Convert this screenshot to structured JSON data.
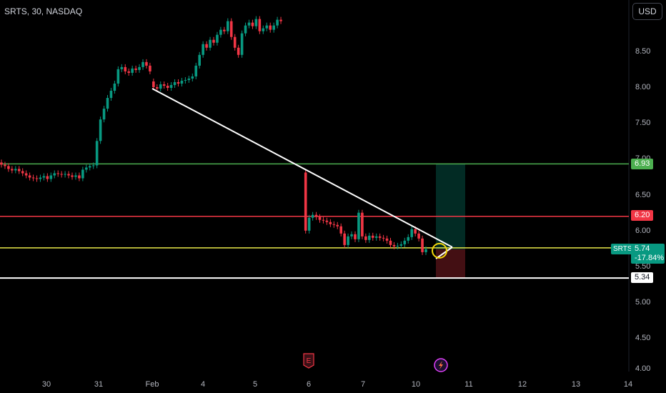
{
  "header": {
    "symbol_title": "SRTS, 30, NASDAQ",
    "currency_label": "USD"
  },
  "y_ticks": [
    "8.50",
    "8.00",
    "7.50",
    "7.00",
    "6.50",
    "6.00",
    "5.50",
    "5.00",
    "4.50",
    "4.00"
  ],
  "x_ticks": [
    "30",
    "31",
    "Feb",
    "4",
    "5",
    "6",
    "7",
    "10",
    "11",
    "12",
    "13",
    "14"
  ],
  "colors": {
    "up": "#089981",
    "down": "#f23645",
    "green_level": "#4caf50",
    "red_level": "#f23645",
    "yellow_level": "#e8e84a",
    "white_level": "#ffffff",
    "trendline": "#ffffff"
  },
  "price_labels": {
    "green_level": "6.93",
    "red_level": "6.20",
    "white_level": "5.34",
    "ticker": "SRTS",
    "last_price": "5.74",
    "last_change": "-17.84%"
  },
  "events": {
    "earnings_icon": "earnings-flag-icon",
    "dividend_icon": "lightning-icon",
    "earnings_letter": "E"
  },
  "chart_data": {
    "type": "candlestick",
    "title": "SRTS, 30, NASDAQ",
    "currency": "USD",
    "ylim": [
      4.0,
      8.95
    ],
    "x_tick_labels": [
      "30",
      "31",
      "Feb",
      "4",
      "5",
      "6",
      "7",
      "10",
      "11",
      "12",
      "13",
      "14"
    ],
    "grid": false,
    "segments": [
      {
        "start_slot": 0,
        "closes": [
          6.92,
          6.9,
          6.86,
          6.84,
          6.86,
          6.83,
          6.8,
          6.77,
          6.74,
          6.73,
          6.72,
          6.74,
          6.76,
          6.72,
          6.77,
          6.8,
          6.79,
          6.78,
          6.79,
          6.77,
          6.75,
          6.77,
          6.73,
          6.85,
          6.88,
          6.9,
          6.91
        ],
        "open": 6.95
      },
      {
        "start_slot": 27,
        "closes": [
          7.25,
          7.55,
          7.7,
          7.85,
          7.95,
          8.05,
          8.25,
          8.28,
          8.22,
          8.2,
          8.26,
          8.24,
          8.28,
          8.35,
          8.3,
          8.22
        ],
        "open": 6.91
      },
      {
        "start_slot": 43,
        "closes": [
          8.0,
          7.98,
          8.04,
          8.02,
          7.99,
          8.03,
          8.07,
          8.05,
          8.09,
          8.1,
          8.12,
          8.15,
          8.3,
          8.45,
          8.6,
          8.55,
          8.66,
          8.62,
          8.73,
          8.8,
          8.78,
          8.92,
          8.7,
          8.55,
          8.45,
          8.75,
          8.86,
          8.9,
          8.85,
          8.95,
          8.78,
          8.82,
          8.86,
          8.8,
          8.86,
          8.94,
          8.92
        ],
        "open": 8.08
      },
      {
        "start_slot": 86,
        "closes": [
          6.0,
          6.18,
          6.22,
          6.19,
          6.15,
          6.14,
          6.12,
          6.09,
          6.08,
          6.06,
          5.96,
          5.8,
          5.92,
          5.95,
          5.88,
          6.25,
          5.92,
          5.87,
          5.93,
          5.9,
          5.92,
          5.9,
          5.89,
          5.86,
          5.8,
          5.78,
          5.79,
          5.81,
          5.86,
          5.91,
          6.02,
          5.96,
          5.89,
          5.7,
          5.74
        ],
        "open": 6.81
      }
    ],
    "trendline": {
      "from": {
        "x": "Feb 1",
        "y": 7.98
      },
      "to": {
        "x": "Feb 10",
        "y": 5.8
      }
    },
    "horizontal_levels": [
      {
        "name": "green",
        "value": 6.93
      },
      {
        "name": "red",
        "value": 6.2
      },
      {
        "name": "yellow",
        "value": 5.76
      },
      {
        "name": "white",
        "value": 5.34
      }
    ],
    "position": {
      "entry": 5.74,
      "target": 6.93,
      "stop": 5.34
    },
    "last_price": 5.74,
    "change_percent": -17.84
  }
}
